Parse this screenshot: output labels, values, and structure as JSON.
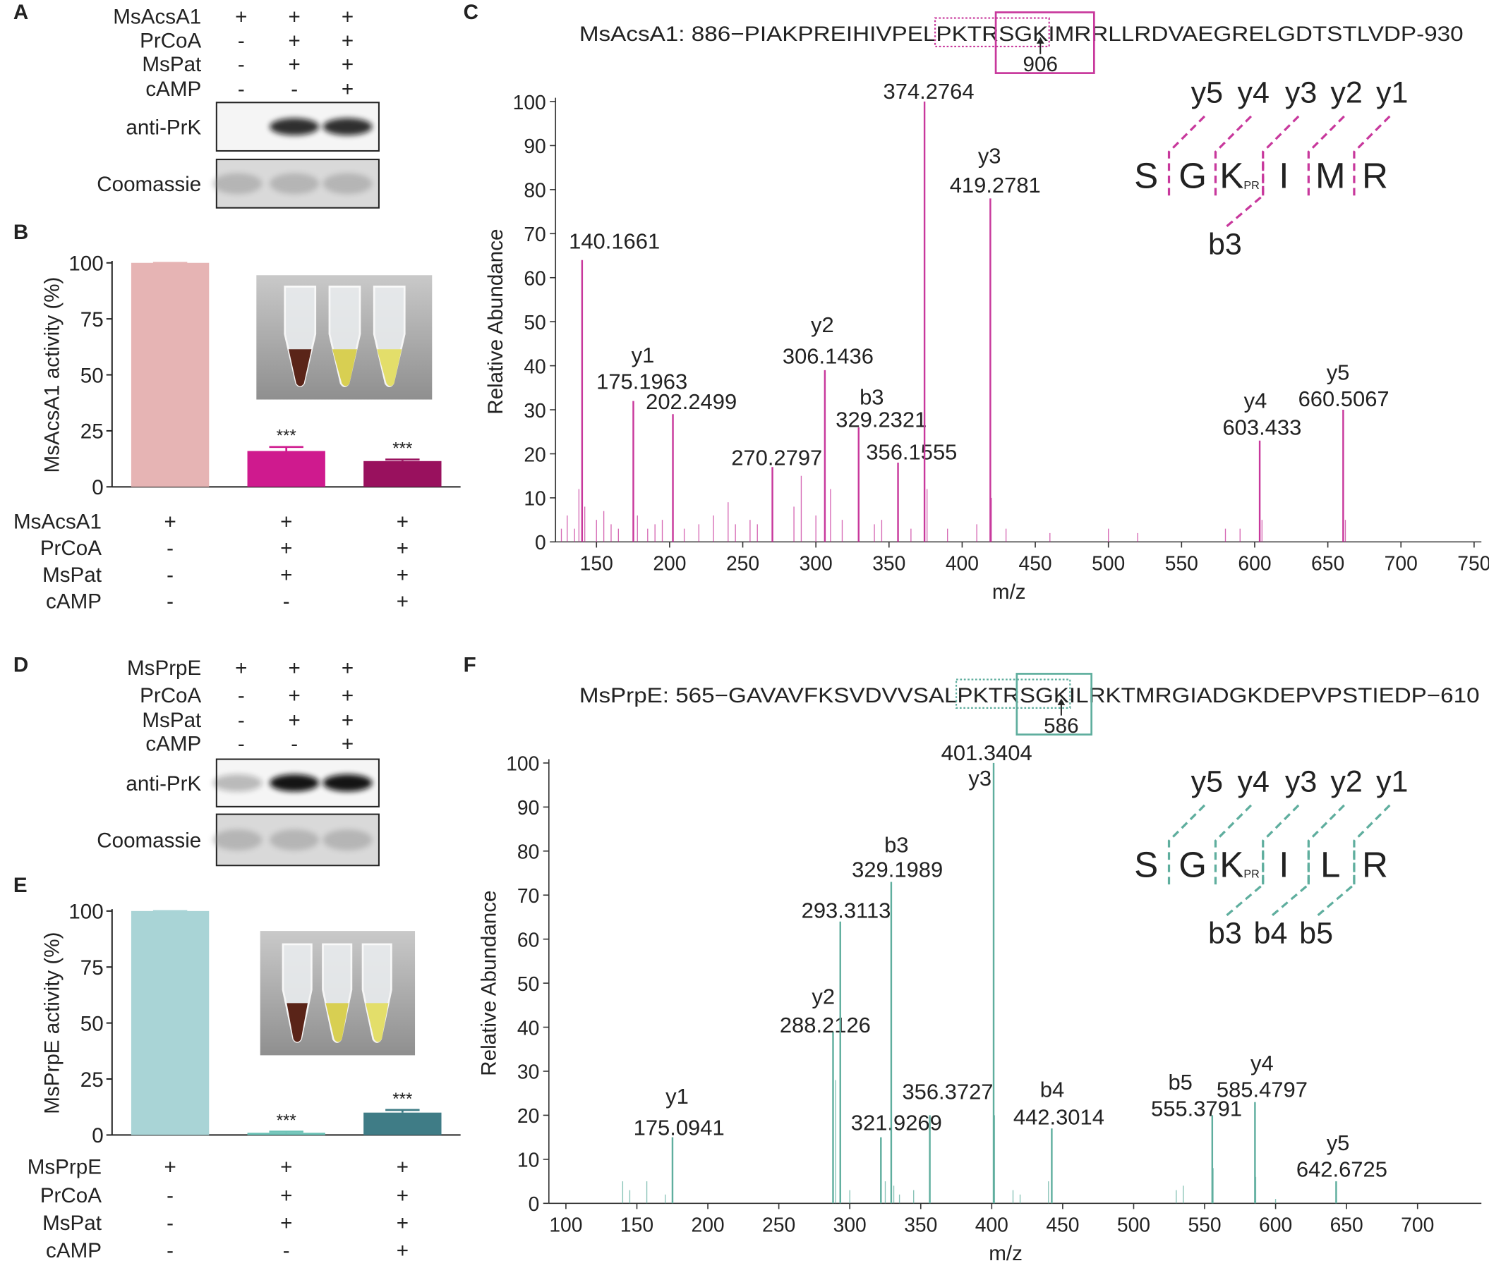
{
  "blots": [
    {
      "panel": "A",
      "conditions": [
        {
          "name": "MsAcsA1",
          "marks": [
            "+",
            "+",
            "+"
          ]
        },
        {
          "name": "PrCoA",
          "marks": [
            "-",
            "+",
            "+"
          ]
        },
        {
          "name": "MsPat",
          "marks": [
            "-",
            "+",
            "+"
          ]
        },
        {
          "name": "cAMP",
          "marks": [
            "-",
            "-",
            "+"
          ]
        }
      ],
      "rows": [
        "anti-PrK",
        "Coomassie"
      ]
    },
    {
      "panel": "D",
      "conditions": [
        {
          "name": "MsPrpE",
          "marks": [
            "+",
            "+",
            "+"
          ]
        },
        {
          "name": "PrCoA",
          "marks": [
            "-",
            "+",
            "+"
          ]
        },
        {
          "name": "MsPat",
          "marks": [
            "-",
            "+",
            "+"
          ]
        },
        {
          "name": "cAMP",
          "marks": [
            "-",
            "-",
            "+"
          ]
        }
      ],
      "rows": [
        "anti-PrK",
        "Coomassie"
      ]
    }
  ],
  "chart_data": [
    {
      "panel": "B",
      "type": "bar",
      "ylabel": "MsAcsA1 activity (%)",
      "values": [
        100,
        16,
        11.5
      ],
      "errors": [
        0,
        1.8,
        0.7
      ],
      "colors": [
        "#e6b4b4",
        "#cf1a8e",
        "#99115e"
      ],
      "annotations": [
        null,
        "***",
        "***"
      ],
      "ylim": [
        0,
        100
      ],
      "yticks": [
        0,
        25,
        50,
        75,
        100
      ],
      "conditions": [
        {
          "name": "MsAcsA1",
          "marks": [
            "+",
            "+",
            "+"
          ]
        },
        {
          "name": "PrCoA",
          "marks": [
            "-",
            "+",
            "+"
          ]
        },
        {
          "name": "MsPat",
          "marks": [
            "-",
            "+",
            "+"
          ]
        },
        {
          "name": "cAMP",
          "marks": [
            "-",
            "-",
            "+"
          ]
        }
      ]
    },
    {
      "panel": "C",
      "type": "spectrum",
      "sequence": "MsAcsA1: 886−PIAKPREIHIVPELPKTRSGKIMRRLLRDVAEGRELGDTSTLVDP-930",
      "site": "906",
      "xlabel": "m/z",
      "ylabel": "Relative Abundance",
      "xlim": [
        122,
        755
      ],
      "xticks": [
        150,
        200,
        250,
        300,
        350,
        400,
        450,
        500,
        550,
        600,
        650,
        700,
        750
      ],
      "ylim": [
        0,
        100
      ],
      "yticks": [
        0,
        10,
        20,
        30,
        40,
        50,
        60,
        70,
        80,
        90,
        100
      ],
      "color": "#c8389c",
      "peaks": [
        {
          "mz": 140.1661,
          "abundance": 64
        },
        {
          "mz": 175.1963,
          "abundance": 32,
          "ion": "y1"
        },
        {
          "mz": 202.2499,
          "abundance": 29
        },
        {
          "mz": 270.2797,
          "abundance": 17
        },
        {
          "mz": 306.1436,
          "abundance": 39,
          "ion": "y2"
        },
        {
          "mz": 329.2321,
          "abundance": 26,
          "ion": "b3"
        },
        {
          "mz": 356.1555,
          "abundance": 18
        },
        {
          "mz": 374.2764,
          "abundance": 100
        },
        {
          "mz": 419.2781,
          "abundance": 78,
          "ion": "y3"
        },
        {
          "mz": 603.433,
          "abundance": 23,
          "ion": "y4"
        },
        {
          "mz": 660.5067,
          "abundance": 30,
          "ion": "y5"
        }
      ],
      "minor_peaks": {
        "x": [
          126,
          130,
          135,
          138,
          142,
          150,
          155,
          160,
          165,
          178,
          185,
          190,
          195,
          210,
          220,
          230,
          240,
          245,
          255,
          260,
          285,
          290,
          300,
          310,
          318,
          340,
          345,
          365,
          376,
          390,
          410,
          420,
          430,
          460,
          500,
          520,
          580,
          590,
          605,
          662
        ],
        "values": [
          3,
          6,
          3,
          12,
          8,
          5,
          7,
          4,
          3,
          6,
          3,
          4,
          5,
          3,
          4,
          6,
          9,
          4,
          5,
          4,
          8,
          15,
          6,
          12,
          5,
          4,
          5,
          3,
          12,
          3,
          4,
          10,
          3,
          2,
          3,
          2,
          3,
          3,
          5,
          5
        ]
      },
      "fragment_map": {
        "residues": [
          "S",
          "G",
          "K",
          "I",
          "M",
          "R"
        ],
        "modification": "PR",
        "y_ions": [
          "y5",
          "y4",
          "y3",
          "y2",
          "y1"
        ],
        "b_ions": [
          "b3"
        ]
      }
    },
    {
      "panel": "E",
      "type": "bar",
      "ylabel": "MsPrpE activity (%)",
      "values": [
        100,
        1,
        10
      ],
      "errors": [
        0,
        0.5,
        1.2
      ],
      "colors": [
        "#a9d4d6",
        "#6cc2b6",
        "#3f7c86"
      ],
      "annotations": [
        null,
        "***",
        "***"
      ],
      "ylim": [
        0,
        100
      ],
      "yticks": [
        0,
        25,
        50,
        75,
        100
      ],
      "conditions": [
        {
          "name": "MsPrpE",
          "marks": [
            "+",
            "+",
            "+"
          ]
        },
        {
          "name": "PrCoA",
          "marks": [
            "-",
            "+",
            "+"
          ]
        },
        {
          "name": "MsPat",
          "marks": [
            "-",
            "+",
            "+"
          ]
        },
        {
          "name": "cAMP",
          "marks": [
            "-",
            "-",
            "+"
          ]
        }
      ]
    },
    {
      "panel": "F",
      "type": "spectrum",
      "sequence": "MsPrpE: 565−GAVAVFKSVDVVSALPKTRSGKILRKTMRGIADGKDEPVPSTIEDP−610",
      "site": "586",
      "xlabel": "m/z",
      "ylabel": "Relative Abundance",
      "xlim": [
        88,
        745
      ],
      "xticks": [
        100,
        150,
        200,
        250,
        300,
        350,
        400,
        450,
        500,
        550,
        600,
        650,
        700
      ],
      "ylim": [
        0,
        100
      ],
      "yticks": [
        0,
        10,
        20,
        30,
        40,
        50,
        60,
        70,
        80,
        90,
        100
      ],
      "color": "#5fae9e",
      "peaks": [
        {
          "mz": 175.0941,
          "abundance": 15,
          "ion": "y1"
        },
        {
          "mz": 288.2126,
          "abundance": 39,
          "ion": "y2"
        },
        {
          "mz": 293.3113,
          "abundance": 64
        },
        {
          "mz": 321.9269,
          "abundance": 15
        },
        {
          "mz": 329.1989,
          "abundance": 73,
          "ion": "b3"
        },
        {
          "mz": 356.3727,
          "abundance": 20
        },
        {
          "mz": 401.3404,
          "abundance": 100,
          "ion": "y3"
        },
        {
          "mz": 442.3014,
          "abundance": 17,
          "ion": "b4"
        },
        {
          "mz": 555.3791,
          "abundance": 20,
          "ion": "b5"
        },
        {
          "mz": 585.4797,
          "abundance": 23,
          "ion": "y4"
        },
        {
          "mz": 642.6725,
          "abundance": 5,
          "ion": "y5"
        }
      ],
      "minor_peaks": {
        "x": [
          140,
          145,
          157,
          170,
          290,
          300,
          325,
          331,
          335,
          345,
          402,
          415,
          420,
          440,
          530,
          535,
          556,
          586,
          600
        ],
        "values": [
          5,
          3,
          5,
          2,
          28,
          3,
          5,
          4,
          2,
          3,
          20,
          3,
          2,
          5,
          3,
          4,
          8,
          6,
          1
        ]
      },
      "fragment_map": {
        "residues": [
          "S",
          "G",
          "K",
          "I",
          "L",
          "R"
        ],
        "modification": "PR",
        "y_ions": [
          "y5",
          "y4",
          "y3",
          "y2",
          "y1"
        ],
        "b_ions": [
          "b3",
          "b4",
          "b5"
        ]
      }
    }
  ]
}
